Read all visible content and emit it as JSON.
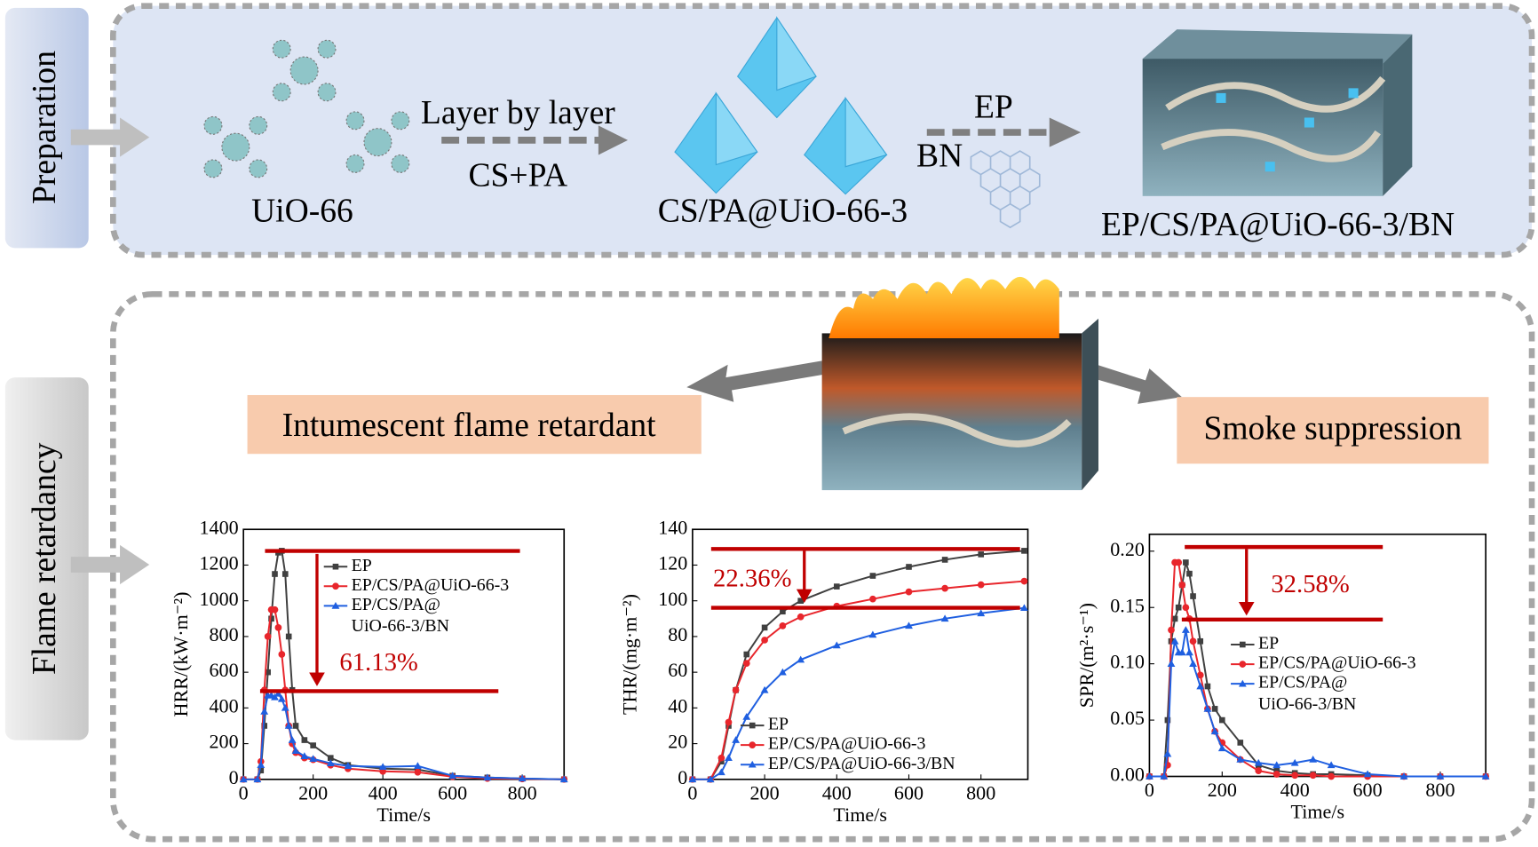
{
  "preparation": {
    "label": "Preparation",
    "precursor": "UiO-66",
    "step1_top": "Layer by layer",
    "step1_bottom": "CS+PA",
    "product1": "CS/PA@UiO-66-3",
    "step2_top": "EP",
    "step2_bottom": "BN",
    "product2": "EP/CS/PA@UiO-66-3/BN"
  },
  "flame": {
    "label": "Flame retardancy",
    "left": "Intumescent flame retardant",
    "right": "Smoke suppression"
  },
  "chart_data": [
    {
      "type": "line",
      "xlabel": "Time/s",
      "ylabel": "HRR/(kW·m⁻²)",
      "annotation": "61.13%",
      "legend": "upper right",
      "xlim": [
        0,
        920
      ],
      "xticks": [
        0,
        200,
        400,
        600,
        800
      ],
      "ylim": [
        0,
        1400
      ],
      "yticks": [
        0,
        200,
        400,
        600,
        800,
        1000,
        1200,
        1400
      ],
      "x": [
        0,
        40,
        50,
        60,
        70,
        80,
        90,
        100,
        110,
        120,
        130,
        140,
        150,
        175,
        200,
        250,
        300,
        400,
        500,
        600,
        700,
        800,
        920
      ],
      "series": [
        {
          "name": "EP",
          "color": "#404040",
          "marker": "square",
          "values": [
            0,
            0,
            50,
            300,
            600,
            900,
            1150,
            1270,
            1280,
            1150,
            800,
            500,
            300,
            220,
            190,
            120,
            80,
            60,
            55,
            20,
            10,
            5,
            0
          ]
        },
        {
          "name": "EP/CS/PA@UiO-66-3",
          "color": "#e8262c",
          "marker": "circle",
          "values": [
            0,
            0,
            100,
            500,
            800,
            950,
            950,
            850,
            700,
            500,
            300,
            200,
            150,
            120,
            110,
            80,
            60,
            45,
            40,
            15,
            5,
            3,
            0
          ]
        },
        {
          "name": [
            "EP/CS/PA@",
            "UiO-66-3/BN"
          ],
          "color": "#1f5fe0",
          "marker": "triangle",
          "values": [
            0,
            0,
            80,
            380,
            470,
            470,
            460,
            480,
            450,
            400,
            300,
            220,
            160,
            130,
            115,
            90,
            75,
            70,
            75,
            20,
            10,
            5,
            0
          ]
        }
      ]
    },
    {
      "type": "line",
      "xlabel": "Time/s",
      "ylabel": "THR/(mg·m⁻²)",
      "annotation": "22.36%",
      "legend": "lower right",
      "xlim": [
        0,
        930
      ],
      "xticks": [
        0,
        200,
        400,
        600,
        800
      ],
      "ylim": [
        0,
        140
      ],
      "yticks": [
        0,
        20,
        40,
        60,
        80,
        100,
        120,
        140
      ],
      "x": [
        0,
        50,
        80,
        100,
        120,
        150,
        200,
        250,
        300,
        400,
        500,
        600,
        700,
        800,
        920
      ],
      "series": [
        {
          "name": "EP",
          "color": "#404040",
          "marker": "square",
          "values": [
            0,
            0,
            10,
            30,
            50,
            70,
            85,
            94,
            100,
            108,
            114,
            119,
            123,
            126,
            128
          ]
        },
        {
          "name": "EP/CS/PA@UiO-66-3",
          "color": "#e8262c",
          "marker": "circle",
          "values": [
            0,
            0,
            12,
            32,
            50,
            65,
            78,
            86,
            91,
            97,
            101,
            105,
            107,
            109,
            111
          ]
        },
        {
          "name": "EP/CS/PA@UiO-66-3/BN",
          "color": "#1f5fe0",
          "marker": "triangle",
          "values": [
            0,
            0,
            4,
            12,
            22,
            35,
            50,
            60,
            67,
            75,
            81,
            86,
            90,
            93,
            96
          ]
        }
      ]
    },
    {
      "type": "line",
      "xlabel": "Time/s",
      "ylabel": "SPR/(m²·s⁻¹)",
      "annotation": "32.58%",
      "legend": "center right",
      "xlim": [
        0,
        925
      ],
      "xticks": [
        0,
        200,
        400,
        600,
        800
      ],
      "ylim": [
        0,
        0.215
      ],
      "yticks": [
        {
          "value": 0,
          "label": "0.00"
        },
        0.05,
        {
          "value": 0.1,
          "label": "0.10"
        },
        0.15,
        {
          "value": 0.2,
          "label": "0.20"
        }
      ],
      "x": [
        0,
        40,
        50,
        60,
        70,
        80,
        90,
        100,
        110,
        120,
        140,
        160,
        180,
        200,
        250,
        300,
        350,
        400,
        450,
        500,
        600,
        700,
        800,
        925
      ],
      "series": [
        {
          "name": "EP",
          "color": "#404040",
          "marker": "square",
          "values": [
            0,
            0,
            0.05,
            0.12,
            0.14,
            0.15,
            0.17,
            0.19,
            0.18,
            0.16,
            0.12,
            0.08,
            0.06,
            0.05,
            0.03,
            0.01,
            0.005,
            0.003,
            0.002,
            0.002,
            0.001,
            0,
            0,
            0
          ]
        },
        {
          "name": "EP/CS/PA@UiO-66-3",
          "color": "#e8262c",
          "marker": "circle",
          "values": [
            0,
            0,
            0.01,
            0.13,
            0.19,
            0.19,
            0.17,
            0.15,
            0.14,
            0.12,
            0.09,
            0.06,
            0.04,
            0.03,
            0.015,
            0.005,
            0.002,
            0.001,
            0.001,
            0,
            0,
            0,
            0,
            0
          ]
        },
        {
          "name": [
            "EP/CS/PA@",
            "UiO-66-3/BN"
          ],
          "color": "#1f5fe0",
          "marker": "triangle",
          "values": [
            0,
            0,
            0.02,
            0.1,
            0.12,
            0.11,
            0.11,
            0.13,
            0.11,
            0.1,
            0.08,
            0.06,
            0.04,
            0.025,
            0.015,
            0.012,
            0.01,
            0.012,
            0.015,
            0.01,
            0.002,
            0,
            0,
            0
          ]
        }
      ]
    }
  ]
}
